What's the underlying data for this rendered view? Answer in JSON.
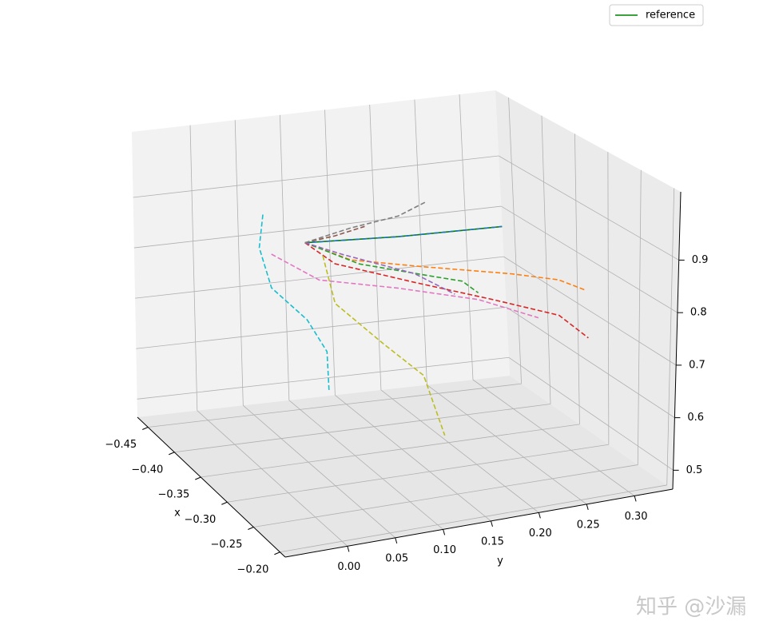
{
  "chart_data": {
    "type": "line3d",
    "xlabel": "x",
    "ylabel": "y",
    "xlim": [
      -0.47,
      -0.19
    ],
    "ylim": [
      -0.065,
      0.34
    ],
    "zlim": [
      0.464,
      1.03
    ],
    "xticks": [
      {
        "value": -0.45,
        "label": "−0.45"
      },
      {
        "value": -0.4,
        "label": "−0.40"
      },
      {
        "value": -0.35,
        "label": "−0.35"
      },
      {
        "value": -0.3,
        "label": "−0.30"
      },
      {
        "value": -0.25,
        "label": "−0.25"
      },
      {
        "value": -0.2,
        "label": "−0.20"
      }
    ],
    "yticks": [
      {
        "value": 0,
        "label": "0.00"
      },
      {
        "value": 0.05,
        "label": "0.05"
      },
      {
        "value": 0.1,
        "label": "0.10"
      },
      {
        "value": 0.15,
        "label": "0.15"
      },
      {
        "value": 0.2,
        "label": "0.20"
      },
      {
        "value": 0.25,
        "label": "0.25"
      },
      {
        "value": 0.3,
        "label": "0.30"
      }
    ],
    "zticks": [
      0.5,
      0.6,
      0.7,
      0.8,
      0.9
    ],
    "grid": true,
    "legend_position": "upper right",
    "watermark": "知乎 @沙漏",
    "series": [
      {
        "name": "reference",
        "color": "#008000",
        "linestyle": "solid",
        "x": [
          -0.33,
          -0.33,
          -0.33
        ],
        "y": [
          0.036,
          0.136,
          0.247
        ],
        "z": [
          0.911,
          0.897,
          0.888
        ]
      },
      {
        "color": "#1f77b4",
        "linestyle": "dashed",
        "x": [
          -0.33,
          -0.33,
          -0.33
        ],
        "y": [
          0.036,
          0.136,
          0.247
        ],
        "z": [
          0.911,
          0.897,
          0.888
        ]
      },
      {
        "color": "#ff7f0e",
        "linestyle": "dashed",
        "x": [
          -0.33,
          -0.33,
          -0.33,
          -0.33,
          -0.33,
          -0.33
        ],
        "y": [
          0.036,
          0.085,
          0.162,
          0.256,
          0.307,
          0.335
        ],
        "z": [
          0.911,
          0.865,
          0.832,
          0.794,
          0.769,
          0.742
        ]
      },
      {
        "color": "#2ca02c",
        "linestyle": "dashed",
        "x": [
          -0.33,
          -0.33,
          -0.33,
          -0.33,
          -0.33
        ],
        "y": [
          0.036,
          0.094,
          0.17,
          0.204,
          0.221
        ],
        "z": [
          0.911,
          0.855,
          0.812,
          0.793,
          0.766
        ]
      },
      {
        "color": "#d62728",
        "linestyle": "dashed",
        "x": [
          -0.33,
          -0.33,
          -0.33,
          -0.33,
          -0.33,
          -0.33
        ],
        "y": [
          0.036,
          0.068,
          0.153,
          0.238,
          0.307,
          0.338
        ],
        "z": [
          0.911,
          0.862,
          0.804,
          0.748,
          0.7,
          0.648
        ]
      },
      {
        "color": "#9467bd",
        "linestyle": "dashed",
        "x": [
          -0.33,
          -0.33,
          -0.33,
          -0.33
        ],
        "y": [
          0.036,
          0.076,
          0.153,
          0.196
        ],
        "z": [
          0.911,
          0.878,
          0.821,
          0.77
        ]
      },
      {
        "color": "#8c564b",
        "linestyle": "dashed",
        "x": [
          -0.33,
          -0.33,
          -0.33
        ],
        "y": [
          0.036,
          0.068,
          0.1
        ],
        "z": [
          0.911,
          0.916,
          0.926
        ]
      },
      {
        "color": "#e377c2",
        "linestyle": "dashed",
        "x": [
          -0.33,
          -0.33,
          -0.33,
          -0.33,
          -0.33
        ],
        "y": [
          0.0,
          0.051,
          0.136,
          0.221,
          0.285
        ],
        "z": [
          0.898,
          0.835,
          0.797,
          0.753,
          0.701
        ]
      },
      {
        "color": "#7f7f7f",
        "linestyle": "dashed",
        "x": [
          -0.33,
          -0.33,
          -0.33,
          -0.33
        ],
        "y": [
          0.036,
          0.085,
          0.136,
          0.166
        ],
        "z": [
          0.911,
          0.927,
          0.937,
          0.957
        ]
      },
      {
        "color": "#bcbd22",
        "linestyle": "dashed",
        "x": [
          -0.33,
          -0.33,
          -0.33,
          -0.33,
          -0.33
        ],
        "y": [
          0.055,
          0.068,
          0.119,
          0.162,
          0.184
        ],
        "z": [
          0.881,
          0.785,
          0.694,
          0.621,
          0.499
        ]
      },
      {
        "color": "#17becf",
        "linestyle": "dashed",
        "x": [
          -0.33,
          -0.33,
          -0.33,
          -0.33,
          -0.33,
          -0.33
        ],
        "y": [
          -0.009,
          -0.013,
          0.0,
          0.038,
          0.059,
          0.061
        ],
        "z": [
          0.977,
          0.914,
          0.833,
          0.761,
          0.694,
          0.616
        ]
      }
    ]
  }
}
